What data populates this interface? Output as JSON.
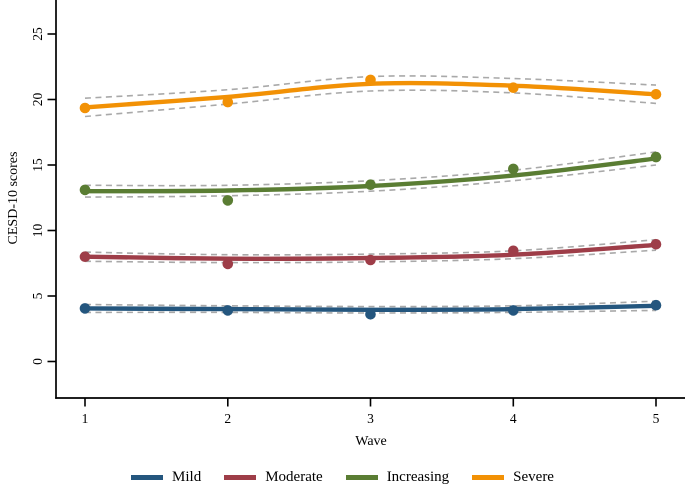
{
  "chart_data": {
    "type": "line",
    "title": "",
    "xlabel": "Wave",
    "ylabel": "CESD-10 scores",
    "x": [
      1,
      2,
      3,
      4,
      5
    ],
    "x_tick_labels": [
      "1",
      "2",
      "3",
      "4",
      "5"
    ],
    "y_ticks": [
      0,
      5,
      10,
      15,
      20,
      25
    ],
    "y_tick_labels": [
      "0",
      "5",
      "10",
      "15",
      "20",
      "25"
    ],
    "ylim": [
      -1.5,
      27
    ],
    "grid": false,
    "legend_position": "bottom",
    "ci_color": "#a9a9a9",
    "series": [
      {
        "name": "Mild",
        "color": "#24567e",
        "trend_line": [
          4.05,
          4.0,
          3.95,
          4.0,
          4.25
        ],
        "observed_points": [
          4.05,
          3.9,
          3.6,
          3.9,
          4.3
        ],
        "ci_halfwidth": [
          0.3,
          0.25,
          0.25,
          0.25,
          0.35
        ]
      },
      {
        "name": "Moderate",
        "color": "#9e3d48",
        "trend_line": [
          8.0,
          7.85,
          7.9,
          8.15,
          8.9
        ],
        "observed_points": [
          8.0,
          7.45,
          7.75,
          8.45,
          8.95
        ],
        "ci_halfwidth": [
          0.35,
          0.3,
          0.3,
          0.3,
          0.4
        ]
      },
      {
        "name": "Increasing",
        "color": "#5a7d33",
        "trend_line": [
          13.0,
          13.05,
          13.4,
          14.2,
          15.5
        ],
        "observed_points": [
          13.1,
          12.3,
          13.5,
          14.7,
          15.6
        ],
        "ci_halfwidth": [
          0.45,
          0.4,
          0.4,
          0.4,
          0.5
        ]
      },
      {
        "name": "Severe",
        "color": "#f29105",
        "trend_line": [
          19.4,
          20.2,
          21.2,
          21.05,
          20.4
        ],
        "observed_points": [
          19.35,
          19.8,
          21.5,
          20.9,
          20.4
        ],
        "ci_halfwidth": [
          0.7,
          0.55,
          0.55,
          0.55,
          0.7
        ]
      }
    ]
  }
}
